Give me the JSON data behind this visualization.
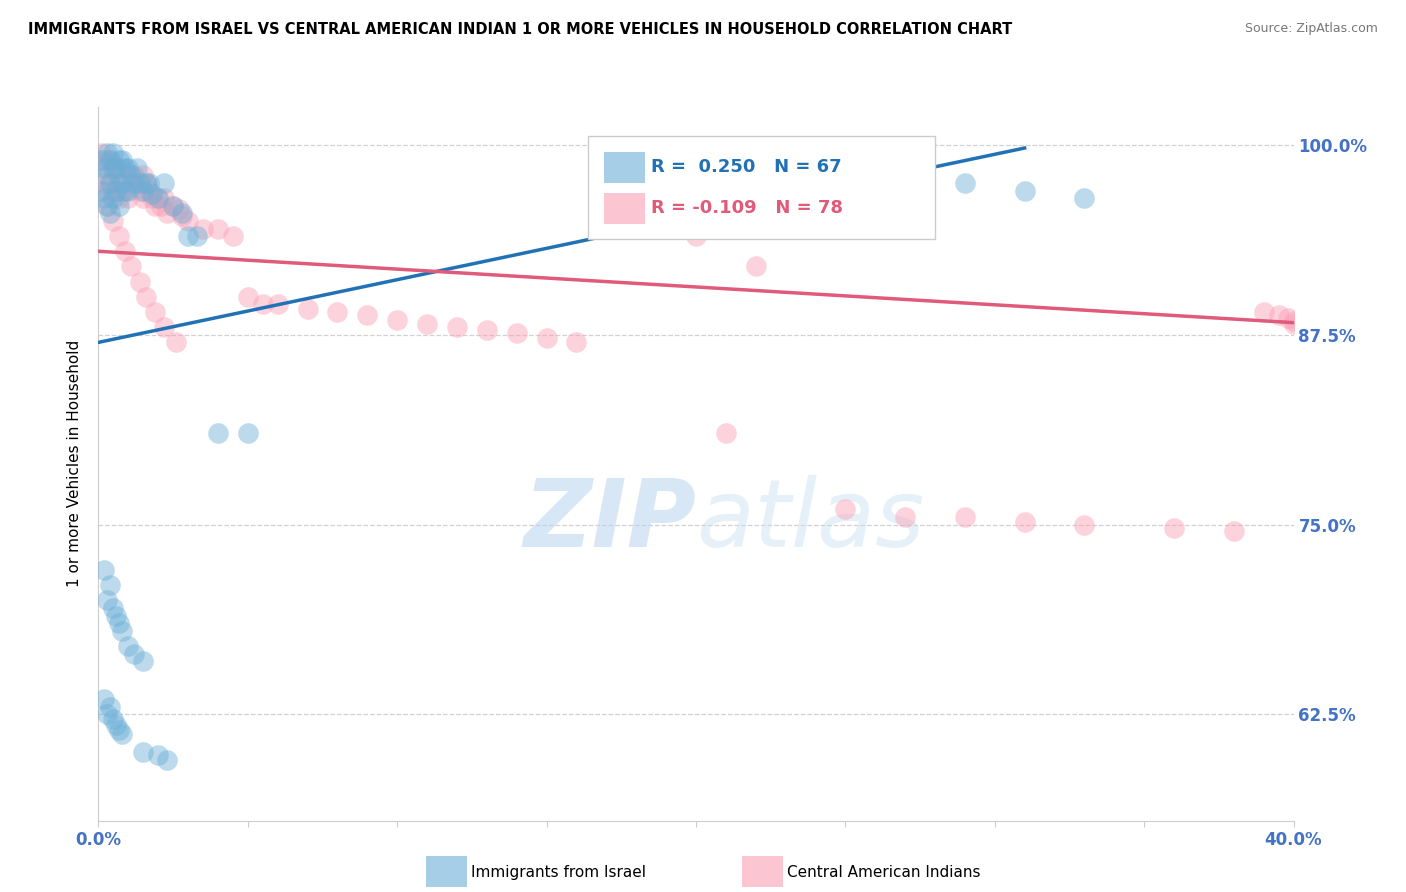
{
  "title": "IMMIGRANTS FROM ISRAEL VS CENTRAL AMERICAN INDIAN 1 OR MORE VEHICLES IN HOUSEHOLD CORRELATION CHART",
  "source": "Source: ZipAtlas.com",
  "ylabel": "1 or more Vehicles in Household",
  "blue_label": "Immigrants from Israel",
  "pink_label": "Central American Indians",
  "blue_R": 0.25,
  "blue_N": 67,
  "pink_R": -0.109,
  "pink_N": 78,
  "xlim": [
    0.0,
    0.4
  ],
  "ylim": [
    0.555,
    1.025
  ],
  "yticks": [
    0.625,
    0.75,
    0.875,
    1.0
  ],
  "ytick_labels": [
    "62.5%",
    "75.0%",
    "87.5%",
    "100.0%"
  ],
  "xticks": [
    0.0,
    0.05,
    0.1,
    0.15,
    0.2,
    0.25,
    0.3,
    0.35,
    0.4
  ],
  "blue_color": "#6baed6",
  "pink_color": "#fa9fb5",
  "blue_line_color": "#2171b5",
  "pink_line_color": "#e05a7a",
  "watermark": "ZIPatlas",
  "blue_x": [
    0.001,
    0.001,
    0.002,
    0.002,
    0.003,
    0.003,
    0.003,
    0.004,
    0.004,
    0.004,
    0.005,
    0.005,
    0.005,
    0.006,
    0.006,
    0.007,
    0.007,
    0.007,
    0.008,
    0.008,
    0.009,
    0.009,
    0.01,
    0.01,
    0.011,
    0.012,
    0.013,
    0.014,
    0.015,
    0.016,
    0.017,
    0.018,
    0.02,
    0.022,
    0.025,
    0.028,
    0.03,
    0.033,
    0.04,
    0.05,
    0.002,
    0.003,
    0.004,
    0.005,
    0.006,
    0.007,
    0.008,
    0.01,
    0.012,
    0.015,
    0.002,
    0.003,
    0.004,
    0.005,
    0.006,
    0.007,
    0.008,
    0.015,
    0.02,
    0.023,
    0.19,
    0.21,
    0.25,
    0.27,
    0.29,
    0.31,
    0.33
  ],
  "blue_y": [
    0.99,
    0.97,
    0.985,
    0.965,
    0.995,
    0.98,
    0.96,
    0.99,
    0.975,
    0.955,
    0.995,
    0.985,
    0.965,
    0.985,
    0.97,
    0.99,
    0.975,
    0.96,
    0.99,
    0.975,
    0.985,
    0.97,
    0.985,
    0.97,
    0.98,
    0.975,
    0.985,
    0.975,
    0.97,
    0.975,
    0.975,
    0.968,
    0.965,
    0.975,
    0.96,
    0.955,
    0.94,
    0.94,
    0.81,
    0.81,
    0.72,
    0.7,
    0.71,
    0.695,
    0.69,
    0.685,
    0.68,
    0.67,
    0.665,
    0.66,
    0.635,
    0.625,
    0.63,
    0.622,
    0.618,
    0.615,
    0.612,
    0.6,
    0.598,
    0.595,
    0.995,
    0.99,
    0.985,
    0.98,
    0.975,
    0.97,
    0.965
  ],
  "pink_x": [
    0.001,
    0.002,
    0.002,
    0.003,
    0.003,
    0.004,
    0.004,
    0.005,
    0.005,
    0.006,
    0.006,
    0.007,
    0.007,
    0.008,
    0.008,
    0.009,
    0.01,
    0.01,
    0.011,
    0.012,
    0.013,
    0.014,
    0.015,
    0.015,
    0.016,
    0.017,
    0.018,
    0.019,
    0.02,
    0.021,
    0.022,
    0.023,
    0.025,
    0.027,
    0.028,
    0.03,
    0.035,
    0.04,
    0.045,
    0.05,
    0.055,
    0.06,
    0.07,
    0.08,
    0.09,
    0.1,
    0.11,
    0.12,
    0.13,
    0.14,
    0.15,
    0.16,
    0.18,
    0.2,
    0.21,
    0.22,
    0.25,
    0.27,
    0.29,
    0.31,
    0.33,
    0.36,
    0.38,
    0.39,
    0.395,
    0.398,
    0.4,
    0.4,
    0.003,
    0.005,
    0.007,
    0.009,
    0.011,
    0.014,
    0.016,
    0.019,
    0.022,
    0.026
  ],
  "pink_y": [
    0.995,
    0.99,
    0.975,
    0.985,
    0.97,
    0.99,
    0.975,
    0.985,
    0.97,
    0.985,
    0.97,
    0.98,
    0.965,
    0.985,
    0.97,
    0.975,
    0.98,
    0.965,
    0.975,
    0.98,
    0.975,
    0.97,
    0.98,
    0.965,
    0.975,
    0.97,
    0.965,
    0.96,
    0.965,
    0.96,
    0.965,
    0.955,
    0.96,
    0.958,
    0.953,
    0.95,
    0.945,
    0.945,
    0.94,
    0.9,
    0.895,
    0.895,
    0.892,
    0.89,
    0.888,
    0.885,
    0.882,
    0.88,
    0.878,
    0.876,
    0.873,
    0.87,
    0.95,
    0.94,
    0.81,
    0.92,
    0.76,
    0.755,
    0.755,
    0.752,
    0.75,
    0.748,
    0.746,
    0.89,
    0.888,
    0.886,
    0.884,
    0.882,
    0.96,
    0.95,
    0.94,
    0.93,
    0.92,
    0.91,
    0.9,
    0.89,
    0.88,
    0.87
  ]
}
